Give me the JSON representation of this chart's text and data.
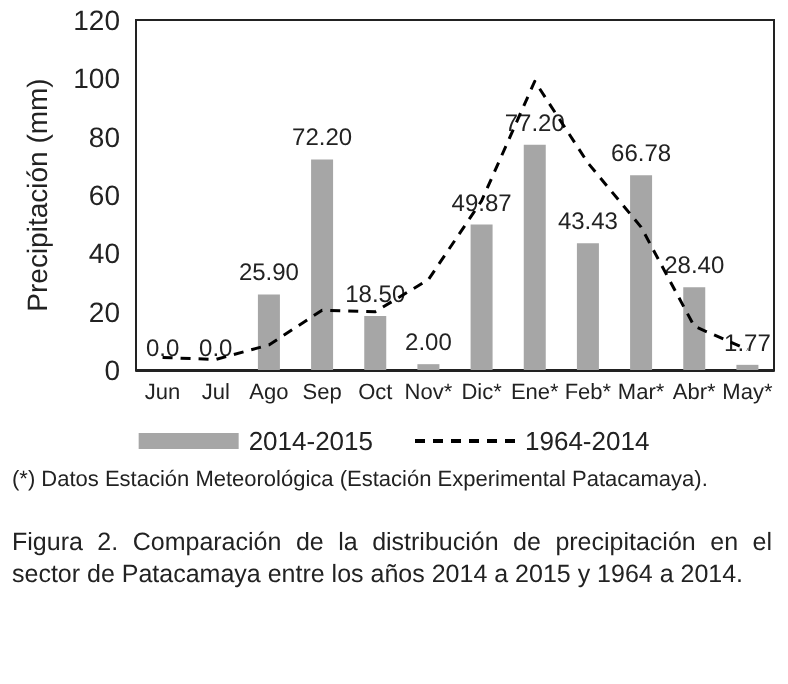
{
  "chart_data": {
    "type": "bar",
    "ylabel": "Precipitación (mm)",
    "categories": [
      "Jun",
      "Jul",
      "Ago",
      "Sep",
      "Oct",
      "Nov*",
      "Dic*",
      "Ene*",
      "Feb*",
      "Mar*",
      "Abr*",
      "May*"
    ],
    "series": [
      {
        "name": "2014-2015",
        "color": "#a6a6a6",
        "values": [
          0.0,
          0.0,
          25.9,
          72.2,
          18.5,
          2.0,
          49.87,
          77.2,
          43.43,
          66.78,
          28.4,
          1.77
        ],
        "value_labels": [
          "0.0",
          "0.0",
          "25.90",
          "72.20",
          "18.50",
          "2.00",
          "49.87",
          "77.20",
          "43.43",
          "66.78",
          "28.40",
          "1.77"
        ]
      },
      {
        "name": "1964-2014",
        "type": "line",
        "color": "#000000",
        "line_style": "dashed",
        "marker": "none",
        "values": [
          4.3,
          3.6,
          8.6,
          20.5,
          20,
          31,
          58,
          99,
          71,
          49,
          15,
          7
        ]
      }
    ],
    "ylim": [
      0,
      120
    ],
    "yticks": [
      0,
      20,
      40,
      60,
      80,
      100,
      120
    ],
    "grid": false,
    "legend": "bottom",
    "annotations": [
      "(*) Datos Estación Meteorológica (Estación Experimental Patacamaya).",
      "Figura 2. Comparación de la distribución de precipitación en el sector de Patacamaya entre los años 2014 a 2015 y 1964 a 2014."
    ]
  }
}
